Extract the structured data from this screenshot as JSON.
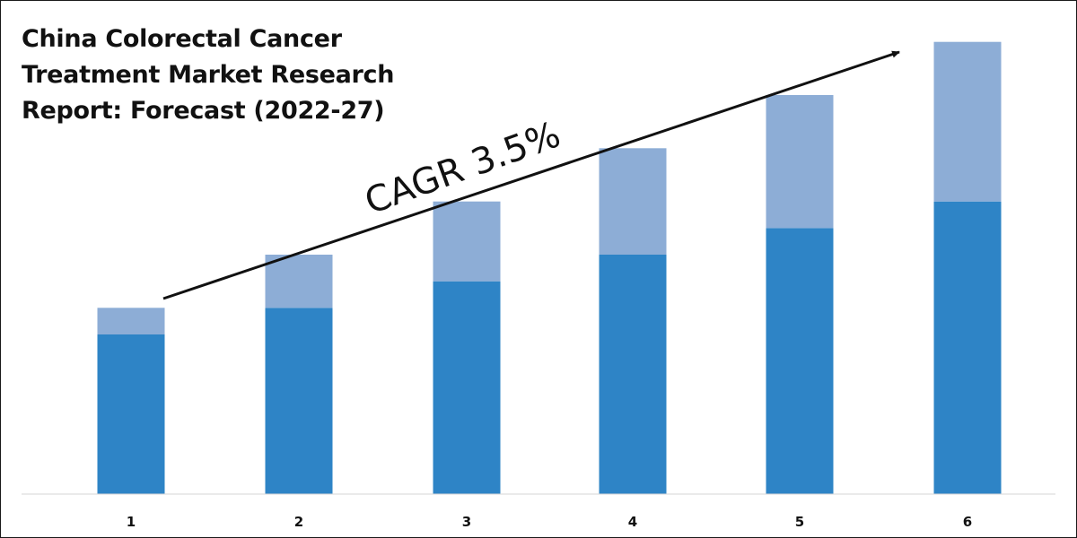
{
  "title_lines": [
    "China Colorectal Cancer",
    "Treatment Market Research",
    "Report: Forecast (2022-27)"
  ],
  "annotation": {
    "text": "CAGR 3.5%"
  },
  "colors": {
    "base": "#2e84c6",
    "top": "#8dadd6",
    "axis": "#d6d6d6",
    "arrow": "#111111"
  },
  "chart_data": {
    "type": "bar",
    "stacked": true,
    "categories": [
      "1",
      "2",
      "3",
      "4",
      "5",
      "6"
    ],
    "series": [
      {
        "values": [
          30,
          35,
          40,
          45,
          50,
          55
        ]
      },
      {
        "values": [
          5,
          10,
          15,
          20,
          25,
          30
        ]
      }
    ],
    "ylim": [
      0,
      90
    ],
    "grid": false,
    "legend": "none"
  }
}
